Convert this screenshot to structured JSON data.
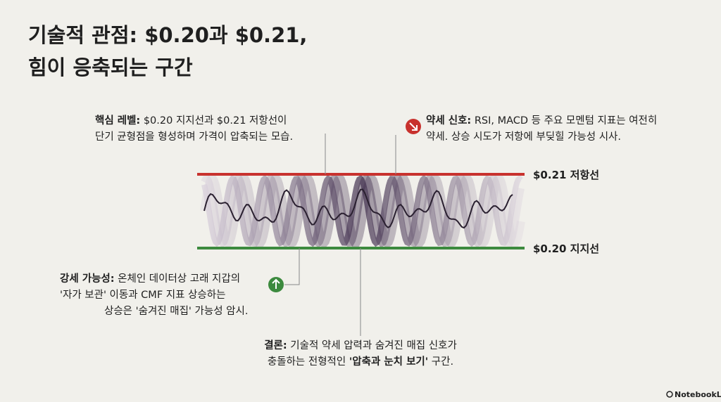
{
  "title": {
    "lines": [
      "기술적 관점: $0.20과 $0.21,",
      "힘이 응축되는 구간"
    ]
  },
  "levels": {
    "resistance": "$0.21 저항선",
    "support": "$0.20 지지선"
  },
  "callouts": {
    "core": {
      "lines": [
        [
          {
            "text": "핵심 레벨:",
            "bold": true
          },
          {
            "text": " $0.20 지지선과 $0.21 저항선이"
          }
        ],
        [
          {
            "text": "단기 균형점을 형성하며 가격이 압축되는 모습."
          }
        ]
      ]
    },
    "weak": {
      "lines": [
        [
          {
            "text": "약세 신호:",
            "bold": true
          },
          {
            "text": " RSI, MACD 등 주요 모멘텀 지표는 여전히"
          }
        ],
        [
          {
            "text": "약세. 상승 시도가 저항에 부딪힐 가능성 시사."
          }
        ]
      ]
    },
    "strong": {
      "lines": [
        [
          {
            "text": "강세 가능성:",
            "bold": true
          },
          {
            "text": " 온체인 데이터상 고래 지갑의"
          }
        ],
        [
          {
            "text": "'자가 보관' 이동과 CMF 지표 상승하는"
          }
        ],
        [
          {
            "text": "상승은 '숨겨진 매집' 가능성 암시."
          }
        ]
      ]
    },
    "conclusion": {
      "lines": [
        [
          {
            "text": "결론:",
            "bold": true
          },
          {
            "text": " 기술적 약세 압력과 숨겨진 매집 신호가"
          }
        ],
        [
          {
            "text": "충돌하는 전형적인 "
          },
          {
            "text": "'압축과 눈치 보기'",
            "bold": true
          },
          {
            "text": " 구간."
          }
        ]
      ]
    }
  },
  "brand": "NotebookLM"
}
